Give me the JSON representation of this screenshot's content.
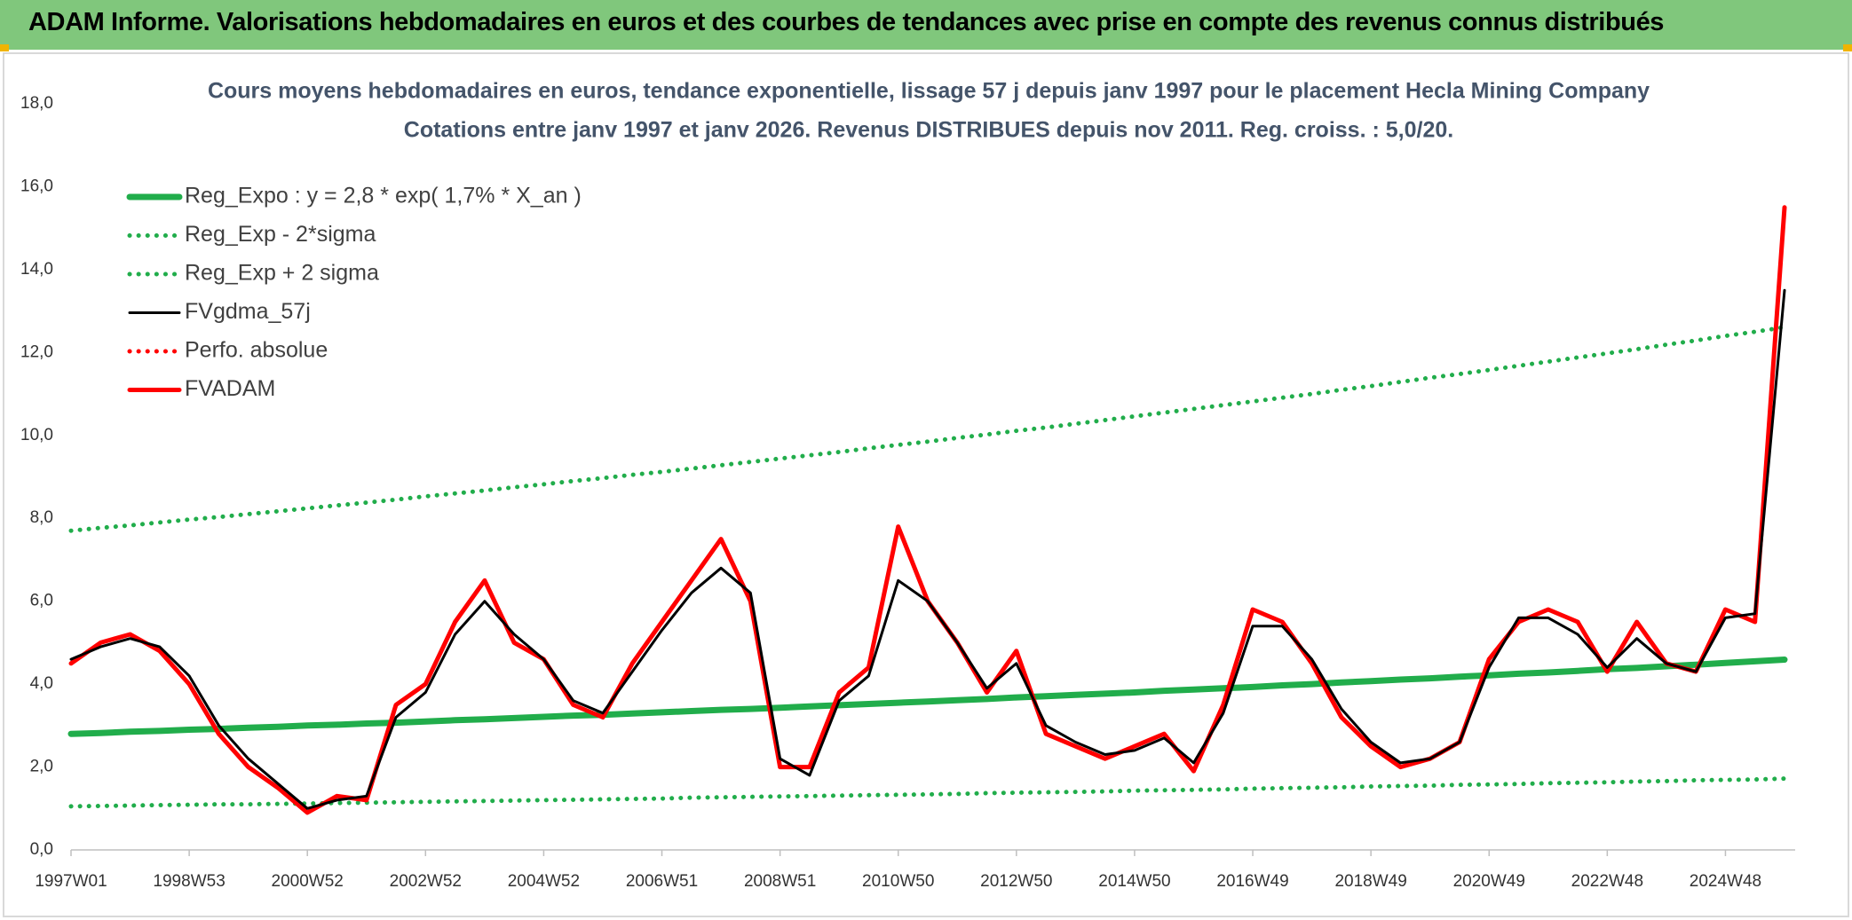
{
  "header": {
    "title": "ADAM Informe. Valorisations hebdomadaires en euros et des courbes de tendances avec prise en compte des revenus connus distribués"
  },
  "chart_data": {
    "type": "line",
    "title": "Cours moyens hebdomadaires en euros, tendance exponentielle, lissage 57 j depuis janv 1997 pour le placement Hecla Mining Company",
    "subtitle": "Cotations entre janv 1997 et janv 2026. Revenus DISTRIBUES depuis nov 2011. Reg. croiss. : 5,0/20.",
    "categories": [
      "1997W01",
      null,
      null,
      null,
      "1998W53",
      null,
      null,
      null,
      "2000W52",
      null,
      null,
      null,
      "2002W52",
      null,
      null,
      null,
      "2004W52",
      null,
      null,
      null,
      "2006W51",
      null,
      null,
      null,
      "2008W51",
      null,
      null,
      null,
      "2010W50",
      null,
      null,
      null,
      "2012W50",
      null,
      null,
      null,
      "2014W50",
      null,
      null,
      null,
      "2016W49",
      null,
      null,
      null,
      "2018W49",
      null,
      null,
      null,
      "2020W49",
      null,
      null,
      null,
      "2022W48",
      null,
      null,
      null,
      "2024W48",
      null,
      null
    ],
    "ylim": [
      0,
      18
    ],
    "yticks": [
      {
        "value": 0,
        "label": "0,0"
      },
      {
        "value": 2,
        "label": "2,0"
      },
      {
        "value": 4,
        "label": "4,0"
      },
      {
        "value": 6,
        "label": "6,0"
      },
      {
        "value": 8,
        "label": "8,0"
      },
      {
        "value": 10,
        "label": "10,0"
      },
      {
        "value": 12,
        "label": "12,0"
      },
      {
        "value": 14,
        "label": "14,0"
      },
      {
        "value": 16,
        "label": "16,0"
      },
      {
        "value": 18,
        "label": "18,0"
      }
    ],
    "grid": false,
    "series": [
      {
        "name": "Reg_Expo : y = 2,8 * exp( 1,7% *  X_an )",
        "color": "#21ad4b",
        "line_style": "solid",
        "values": [
          2.8,
          2.82,
          2.85,
          2.87,
          2.9,
          2.92,
          2.95,
          2.97,
          3.0,
          3.02,
          3.05,
          3.07,
          3.1,
          3.13,
          3.15,
          3.18,
          3.21,
          3.24,
          3.26,
          3.29,
          3.32,
          3.35,
          3.38,
          3.4,
          3.43,
          3.46,
          3.49,
          3.52,
          3.55,
          3.58,
          3.61,
          3.64,
          3.68,
          3.71,
          3.74,
          3.77,
          3.8,
          3.84,
          3.87,
          3.9,
          3.93,
          3.97,
          4.0,
          4.04,
          4.07,
          4.11,
          4.14,
          4.18,
          4.21,
          4.25,
          4.28,
          4.32,
          4.36,
          4.39,
          4.43,
          4.47,
          4.51,
          4.55,
          4.59
        ]
      },
      {
        "name": "Reg_Exp - 2*sigma",
        "color": "#21ad4b",
        "line_style": "dotted",
        "values": [
          1.05,
          1.06,
          1.07,
          1.08,
          1.09,
          1.1,
          1.1,
          1.11,
          1.12,
          1.13,
          1.14,
          1.15,
          1.16,
          1.17,
          1.18,
          1.19,
          1.2,
          1.21,
          1.22,
          1.23,
          1.24,
          1.26,
          1.27,
          1.28,
          1.29,
          1.3,
          1.31,
          1.32,
          1.33,
          1.34,
          1.35,
          1.37,
          1.38,
          1.39,
          1.4,
          1.41,
          1.43,
          1.44,
          1.45,
          1.46,
          1.48,
          1.49,
          1.5,
          1.51,
          1.53,
          1.54,
          1.55,
          1.57,
          1.58,
          1.59,
          1.61,
          1.62,
          1.63,
          1.65,
          1.66,
          1.68,
          1.69,
          1.7,
          1.72
        ]
      },
      {
        "name": "Reg_Exp + 2 sigma",
        "color": "#21ad4b",
        "line_style": "dotted",
        "values": [
          7.7,
          7.77,
          7.83,
          7.9,
          7.97,
          8.03,
          8.1,
          8.17,
          8.24,
          8.31,
          8.38,
          8.45,
          8.53,
          8.6,
          8.67,
          8.75,
          8.82,
          8.9,
          8.97,
          9.05,
          9.12,
          9.2,
          9.28,
          9.36,
          9.44,
          9.52,
          9.6,
          9.69,
          9.77,
          9.85,
          9.94,
          10.02,
          10.11,
          10.19,
          10.28,
          10.37,
          10.46,
          10.55,
          10.64,
          10.73,
          10.82,
          10.91,
          11.0,
          11.1,
          11.19,
          11.29,
          11.39,
          11.48,
          11.58,
          11.68,
          11.78,
          11.88,
          11.98,
          12.08,
          12.19,
          12.29,
          12.4,
          12.5,
          12.61
        ]
      },
      {
        "name": "FVgdma_57j",
        "color": "#000000",
        "line_style": "solid",
        "values": [
          4.6,
          4.9,
          5.1,
          4.9,
          4.2,
          3.0,
          2.2,
          1.6,
          1.0,
          1.2,
          1.3,
          3.2,
          3.8,
          5.2,
          6.0,
          5.2,
          4.6,
          3.6,
          3.3,
          4.3,
          5.3,
          6.2,
          6.8,
          6.2,
          2.2,
          1.8,
          3.6,
          4.2,
          6.5,
          6.0,
          5.0,
          3.9,
          4.5,
          3.0,
          2.6,
          2.3,
          2.4,
          2.7,
          2.1,
          3.3,
          5.4,
          5.4,
          4.6,
          3.4,
          2.6,
          2.1,
          2.2,
          2.6,
          4.4,
          5.6,
          5.6,
          5.2,
          4.4,
          5.1,
          4.5,
          4.3,
          5.6,
          5.7,
          13.5
        ]
      },
      {
        "name": "Perfo. absolue",
        "color": "#ff0000",
        "line_style": "dotted",
        "values": [
          null,
          null,
          null,
          null,
          null,
          null,
          null,
          null,
          null,
          null,
          null,
          null,
          null,
          null,
          null,
          null,
          null,
          null,
          null,
          null,
          null,
          null,
          null,
          null,
          null,
          null,
          null,
          null,
          null,
          null,
          null,
          null,
          null,
          null,
          null,
          null,
          null,
          null,
          null,
          null,
          null,
          null,
          null,
          null,
          null,
          null,
          null,
          null,
          null,
          null,
          null,
          null,
          null,
          null,
          null,
          null,
          null,
          null,
          null
        ]
      },
      {
        "name": "FVADAM",
        "color": "#ff0000",
        "line_style": "solid",
        "values": [
          4.5,
          5.0,
          5.2,
          4.8,
          4.0,
          2.8,
          2.0,
          1.5,
          0.9,
          1.3,
          1.2,
          3.5,
          4.0,
          5.5,
          6.5,
          5.0,
          4.6,
          3.5,
          3.2,
          4.5,
          5.5,
          6.5,
          7.5,
          6.0,
          2.0,
          2.0,
          3.8,
          4.4,
          7.8,
          6.0,
          5.0,
          3.8,
          4.8,
          2.8,
          2.5,
          2.2,
          2.5,
          2.8,
          1.9,
          3.5,
          5.8,
          5.5,
          4.5,
          3.2,
          2.5,
          2.0,
          2.2,
          2.6,
          4.6,
          5.5,
          5.8,
          5.5,
          4.3,
          5.5,
          4.5,
          4.3,
          5.8,
          5.5,
          15.5
        ]
      }
    ]
  }
}
